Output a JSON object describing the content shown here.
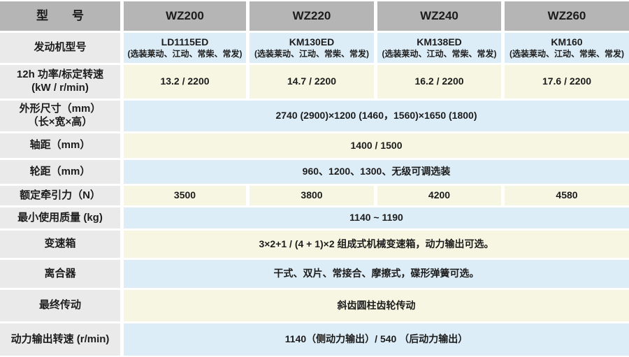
{
  "colors": {
    "header_bg": "#b5b5b5",
    "label_bg": "#eaeaea",
    "row_blue": "#ddedf8",
    "row_yellow": "#f6f6e3",
    "text": "#1c1c1c"
  },
  "header": {
    "label_col": "型　　号",
    "models": [
      "WZ200",
      "WZ220",
      "WZ240",
      "WZ260"
    ]
  },
  "rows": {
    "engine": {
      "label": "发动机型号",
      "models": [
        "LD1115ED",
        "KM130ED",
        "KM138ED",
        "KM160"
      ],
      "options_note": "(选装莱动、江动、常柴、常发)"
    },
    "power": {
      "label_line1": "12h 功率/标定转速",
      "label_line2": "(kW / r/min)",
      "values": [
        "13.2 / 2200",
        "14.7 / 2200",
        "16.2 / 2200",
        "17.6 / 2200"
      ]
    },
    "dimensions": {
      "label_line1": "外形尺寸（mm）",
      "label_line2": "（长×宽×高）",
      "value": "2740 (2900)×1200 (1460，1560)×1650 (1800)"
    },
    "wheelbase": {
      "label": "轴距（mm）",
      "value": "1400 / 1500"
    },
    "track": {
      "label": "轮距（mm）",
      "value": "960、1200、1300、无级可调选装"
    },
    "traction": {
      "label": "额定牵引力（N）",
      "values": [
        "3500",
        "3800",
        "4200",
        "4580"
      ]
    },
    "min_weight": {
      "label": "最小使用质量 (kg)",
      "value": "1140 ~ 1190"
    },
    "gearbox": {
      "label": "变速箱",
      "value": "3×2+1 / (4 + 1)×2 组成式机械变速箱，动力输出可选。"
    },
    "clutch": {
      "label": "离合器",
      "value": "干式、双片、常接合、摩擦式，碟形弹簧可选。"
    },
    "final_drive": {
      "label": "最终传动",
      "value": "斜齿圆柱齿轮传动"
    },
    "pto_speed": {
      "label": "动力输出转速 (r/min)",
      "value": "1140（侧动力输出）/ 540 （后动力输出）"
    }
  }
}
